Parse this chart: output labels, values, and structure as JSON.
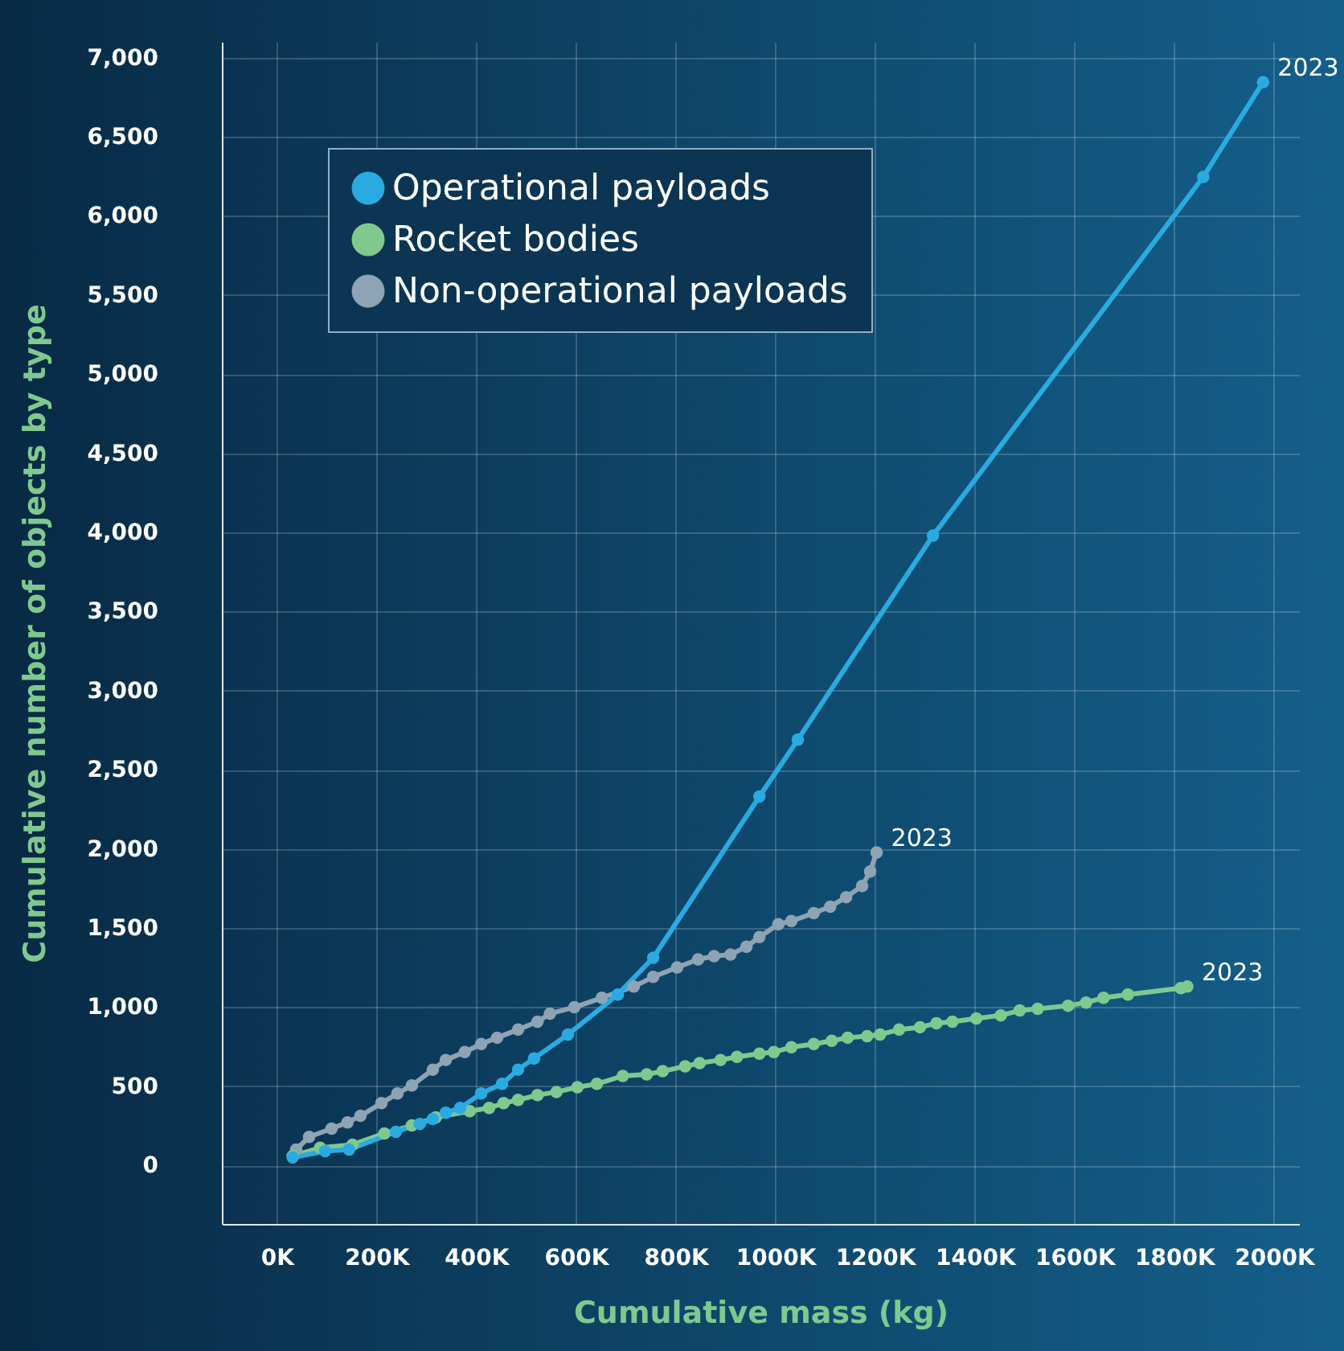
{
  "chart_data": {
    "type": "line",
    "xlabel": "Cumulative mass (kg)",
    "ylabel": "Cumulative number of objects by type",
    "xlim": [
      -110000,
      2050000
    ],
    "ylim": [
      -370,
      7100
    ],
    "xticks": [
      {
        "value": 0,
        "label": "0K"
      },
      {
        "value": 200000,
        "label": "200K"
      },
      {
        "value": 400000,
        "label": "400K"
      },
      {
        "value": 600000,
        "label": "600K"
      },
      {
        "value": 800000,
        "label": "800K"
      },
      {
        "value": 1000000,
        "label": "1000K"
      },
      {
        "value": 1200000,
        "label": "1200K"
      },
      {
        "value": 1400000,
        "label": "1400K"
      },
      {
        "value": 1600000,
        "label": "1600K"
      },
      {
        "value": 1800000,
        "label": "1800K"
      },
      {
        "value": 2000000,
        "label": "2000K"
      }
    ],
    "yticks": [
      0,
      500,
      {
        "value": 1000,
        "label": "1,000"
      },
      {
        "value": 1500,
        "label": "1,500"
      },
      {
        "value": 2000,
        "label": "2,000"
      },
      {
        "value": 2500,
        "label": "2,500"
      },
      {
        "value": 3000,
        "label": "3,000"
      },
      {
        "value": 3500,
        "label": "3,500"
      },
      {
        "value": 4000,
        "label": "4,000"
      },
      {
        "value": 4500,
        "label": "4,500"
      },
      {
        "value": 5000,
        "label": "5,000"
      },
      {
        "value": 5500,
        "label": "5,500"
      },
      {
        "value": 6000,
        "label": "6,000"
      },
      {
        "value": 6500,
        "label": "6,500"
      },
      {
        "value": 7000,
        "label": "7,000"
      }
    ],
    "grid": true,
    "legend": "top left",
    "marker": "circle",
    "line_style": "solid",
    "series": [
      {
        "name": "Operational payloads",
        "color": "#29abe2",
        "x": [
          32000,
          97000,
          145000,
          239000,
          287000,
          313000,
          339000,
          368000,
          410000,
          452000,
          484000,
          516000,
          584000,
          684000,
          755000,
          968000,
          1045000,
          1316000,
          1858000,
          1978000
        ],
        "values": [
          50,
          90,
          100,
          212,
          262,
          293,
          333,
          363,
          454,
          515,
          605,
          676,
          827,
          1080,
          1312,
          2331,
          2690,
          3980,
          6246,
          6845
        ]
      },
      {
        "name": "Rocket bodies",
        "color": "#7fc98f",
        "x": [
          32000,
          87000,
          152000,
          216000,
          271000,
          319000,
          387000,
          426000,
          455000,
          484000,
          523000,
          561000,
          603000,
          642000,
          694000,
          742000,
          774000,
          819000,
          848000,
          890000,
          923000,
          968000,
          997000,
          1032000,
          1077000,
          1113000,
          1145000,
          1184000,
          1210000,
          1248000,
          1290000,
          1323000,
          1355000,
          1403000,
          1452000,
          1490000,
          1526000,
          1587000,
          1623000,
          1658000,
          1707000,
          1813000,
          1826000
        ],
        "values": [
          60,
          111,
          131,
          202,
          252,
          303,
          343,
          363,
          393,
          414,
          444,
          464,
          494,
          515,
          565,
          575,
          595,
          626,
          646,
          666,
          686,
          706,
          716,
          747,
          767,
          787,
          807,
          817,
          827,
          858,
          873,
          898,
          908,
          928,
          948,
          979,
          989,
          1009,
          1029,
          1059,
          1080,
          1120,
          1130
        ]
      },
      {
        "name": "Non-operational payloads",
        "color": "#8ea3b3",
        "x": [
          39000,
          65000,
          110000,
          142000,
          168000,
          210000,
          242000,
          271000,
          313000,
          339000,
          377000,
          410000,
          442000,
          484000,
          523000,
          548000,
          597000,
          652000,
          716000,
          755000,
          803000,
          845000,
          877000,
          910000,
          942000,
          968000,
          1006000,
          1032000,
          1077000,
          1110000,
          1142000,
          1174000,
          1190000,
          1203000
        ],
        "values": [
          100,
          180,
          232,
          272,
          313,
          393,
          454,
          505,
          605,
          666,
          716,
          767,
          807,
          858,
          908,
          959,
          999,
          1059,
          1130,
          1191,
          1251,
          1302,
          1322,
          1332,
          1382,
          1443,
          1524,
          1544,
          1594,
          1635,
          1695,
          1766,
          1857,
          1978
        ]
      }
    ],
    "annotations": [
      {
        "text": "2023",
        "x": 1978000,
        "y": 6845
      },
      {
        "text": "2023",
        "x": 1203000,
        "y": 1978
      },
      {
        "text": "2023",
        "x": 1826000,
        "y": 1130
      }
    ]
  }
}
